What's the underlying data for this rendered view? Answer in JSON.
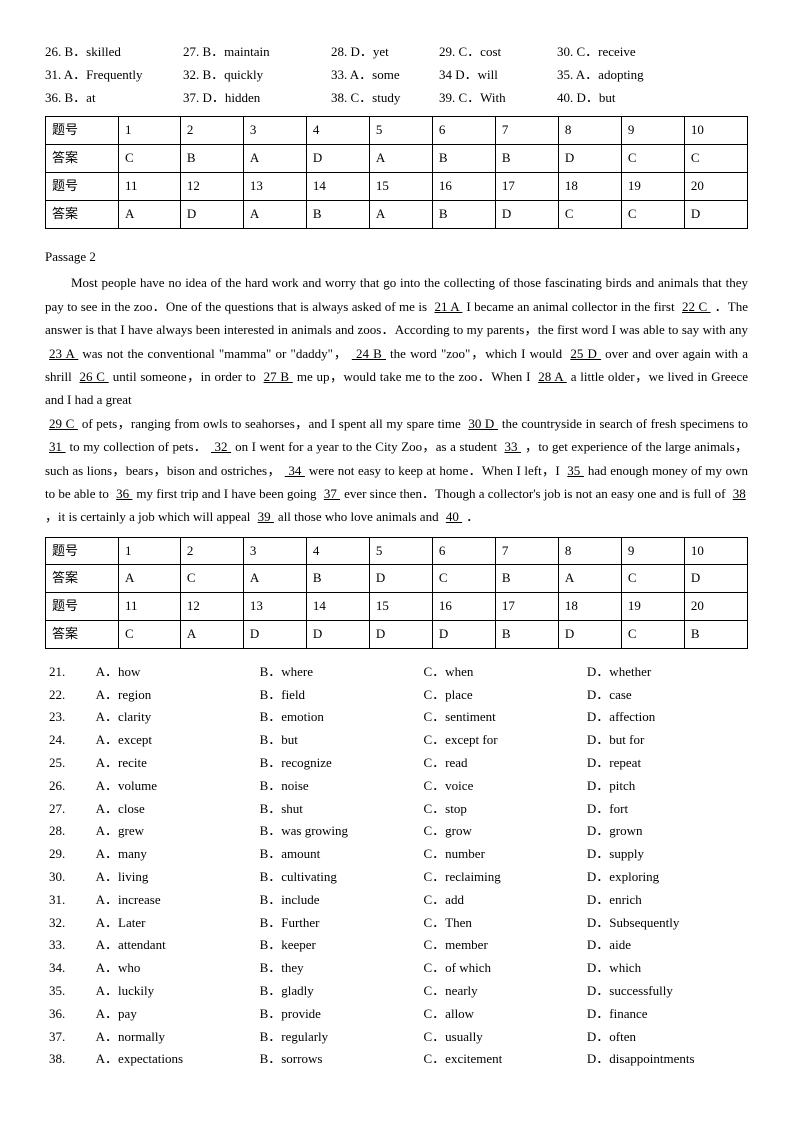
{
  "topAnswers": [
    {
      "n": "26.",
      "v": "B．skilled"
    },
    {
      "n": "27.",
      "v": "B．maintain"
    },
    {
      "n": "28.",
      "v": "D．yet"
    },
    {
      "n": "29.",
      "v": "C．cost"
    },
    {
      "n": "30.",
      "v": "C．receive"
    },
    {
      "n": "31.",
      "v": "A．Frequently"
    },
    {
      "n": "32.",
      "v": "B．quickly"
    },
    {
      "n": "33.",
      "v": "A．some"
    },
    {
      "n": "34",
      "v": "D．will"
    },
    {
      "n": "35.",
      "v": "A．adopting"
    },
    {
      "n": "36.",
      "v": "B．at"
    },
    {
      "n": "37.",
      "v": "D．hidden"
    },
    {
      "n": "38.",
      "v": "C．study"
    },
    {
      "n": "39.",
      "v": "C．With"
    },
    {
      "n": "40.",
      "v": "D．but"
    }
  ],
  "table1": {
    "row1Label": "题号",
    "row1": [
      "1",
      "2",
      "3",
      "4",
      "5",
      "6",
      "7",
      "8",
      "9",
      "10"
    ],
    "row2Label": "答案",
    "row2": [
      "C",
      "B",
      "A",
      "D",
      "A",
      "B",
      "B",
      "D",
      "C",
      "C"
    ],
    "row3Label": "题号",
    "row3": [
      "11",
      "12",
      "13",
      "14",
      "15",
      "16",
      "17",
      "18",
      "19",
      "20"
    ],
    "row4Label": "答案",
    "row4": [
      "A",
      "D",
      "A",
      "B",
      "A",
      "B",
      "D",
      "C",
      "C",
      "D"
    ]
  },
  "passageTitle": "Passage 2",
  "passage": {
    "p1_a": "Most people have no idea of the hard work and worry that go into the collecting of those fascinating birds and animals that they pay to see in the zoo．One of the questions that is always asked of me is ",
    "b21": "  21 A  ",
    "p1_b": " I became an animal collector in the first ",
    "b22": "  22 C  ",
    "p1_c": "．The answer is that I have always been interested in animals and zoos．According to my parents，the first word I was able to say with any ",
    "b23": "  23 A  ",
    "p1_d": " was not the conventional \"mamma\" or \"daddy\"，",
    "b24": "  24 B  ",
    "p1_e": " the word \"zoo\"，which I would ",
    "b25": "  25 D  ",
    "p1_f": " over and over again with a shrill ",
    "b26": "  26 C  ",
    "p1_g": " until someone，in order to ",
    "b27": "  27 B  ",
    "p1_h": " me up，would take me to the zoo．When I ",
    "b28": "  28 A  ",
    "p1_i": " a little older，we lived in Greece and I had a great",
    "p2_a": "",
    "b29": "  29 C  ",
    "p2_b": " of pets，ranging from owls to seahorses，and I spent all my spare time ",
    "b30": "  30 D  ",
    "p2_c": " the countryside in search of fresh specimens to ",
    "b31": "  31  ",
    "p2_d": " to my collection of pets．",
    "b32": "  32  ",
    "p2_e": " on I went for a year to the City Zoo，as a student ",
    "b33": "  33  ",
    "p2_f": "，to get experience of the large animals，such as lions，bears，bison and ostriches，",
    "b34": "  34  ",
    "p2_g": " were not easy to keep at home．When I left，I ",
    "b35": "  35  ",
    "p2_h": " had enough money of my own to be able to ",
    "b36": "  36  ",
    "p2_i": " my first trip and I have been going ",
    "b37": "  37  ",
    "p2_j": " ever since then．Though a collector's job is not an easy one and is full of ",
    "b38": "  38  ",
    "p2_k": "，it is certainly a job which will appeal ",
    "b39": "  39  ",
    "p2_l": " all those who love animals and ",
    "b40": "  40  ",
    "p2_m": "．"
  },
  "table2": {
    "row1Label": "题号",
    "row1": [
      "1",
      "2",
      "3",
      "4",
      "5",
      "6",
      "7",
      "8",
      "9",
      "10"
    ],
    "row2Label": "答案",
    "row2": [
      "A",
      "C",
      "A",
      "B",
      "D",
      "C",
      "B",
      "A",
      "C",
      "D"
    ],
    "row3Label": "题号",
    "row3": [
      "11",
      "12",
      "13",
      "14",
      "15",
      "16",
      "17",
      "18",
      "19",
      "20"
    ],
    "row4Label": "答案",
    "row4": [
      "C",
      "A",
      "D",
      "D",
      "D",
      "D",
      "B",
      "D",
      "C",
      "B"
    ]
  },
  "options": [
    {
      "n": "21.",
      "a": "A．how",
      "b": "B．where",
      "c": "C．when",
      "d": "D．whether"
    },
    {
      "n": "22.",
      "a": "A．region",
      "b": "B．field",
      "c": "C．place",
      "d": "D．case"
    },
    {
      "n": "23.",
      "a": "A．clarity",
      "b": "B．emotion",
      "c": "C．sentiment",
      "d": "D．affection"
    },
    {
      "n": "24.",
      "a": "A．except",
      "b": "B．but",
      "c": "C．except for",
      "d": "D．but for"
    },
    {
      "n": "25.",
      "a": "A．recite",
      "b": "B．recognize",
      "c": "C．read",
      "d": "D．repeat"
    },
    {
      "n": "26.",
      "a": "A．volume",
      "b": "B．noise",
      "c": "C．voice",
      "d": "D．pitch"
    },
    {
      "n": "27.",
      "a": "A．close",
      "b": "B．shut",
      "c": "C．stop",
      "d": "D．fort"
    },
    {
      "n": "28.",
      "a": "A．grew",
      "b": "B．was growing",
      "c": "C．grow",
      "d": "D．grown"
    },
    {
      "n": "29.",
      "a": "A．many",
      "b": "B．amount",
      "c": "C．number",
      "d": "D．supply"
    },
    {
      "n": "30.",
      "a": "A．living",
      "b": "B．cultivating",
      "c": "C．reclaiming",
      "d": "D．exploring"
    },
    {
      "n": "31.",
      "a": "A．increase",
      "b": "B．include",
      "c": "C．add",
      "d": "D．enrich"
    },
    {
      "n": "32.",
      "a": "A．Later",
      "b": "B．Further",
      "c": "C．Then",
      "d": "D．Subsequently"
    },
    {
      "n": "33.",
      "a": "A．attendant",
      "b": "B．keeper",
      "c": "C．member",
      "d": "D．aide"
    },
    {
      "n": "34.",
      "a": "A．who",
      "b": "B．they",
      "c": "C．of which",
      "d": "D．which"
    },
    {
      "n": "35.",
      "a": "A．luckily",
      "b": "B．gladly",
      "c": "C．nearly",
      "d": "D．successfully"
    },
    {
      "n": "36.",
      "a": "A．pay",
      "b": "B．provide",
      "c": "C．allow",
      "d": "D．finance"
    },
    {
      "n": "37.",
      "a": "A．normally",
      "b": "B．regularly",
      "c": "C．usually",
      "d": "D．often"
    },
    {
      "n": "38.",
      "a": "A．expectations",
      "b": "B．sorrows",
      "c": "C．excitement",
      "d": "D．disappointments"
    }
  ]
}
